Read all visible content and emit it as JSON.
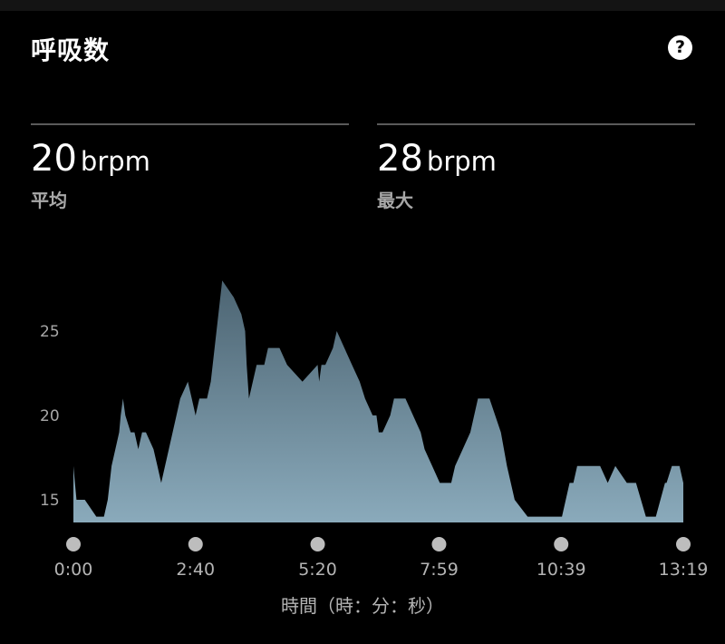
{
  "header": {
    "title": "呼吸数",
    "help_icon": "question-circle-icon"
  },
  "stats": [
    {
      "value": "20",
      "unit": "brpm",
      "label": "平均"
    },
    {
      "value": "28",
      "unit": "brpm",
      "label": "最大"
    }
  ],
  "chart_data": {
    "type": "area",
    "title": "",
    "xlabel": "時間（時：分：秒）",
    "ylabel": "",
    "y_ticks": [
      15,
      20,
      25
    ],
    "ylim": [
      13.7,
      29
    ],
    "x_ticks": [
      "0:00",
      "2:40",
      "5:20",
      "7:59",
      "10:39",
      "13:19"
    ],
    "x_tick_minutes": [
      0,
      160,
      320,
      479,
      639,
      799
    ],
    "xlim_minutes": [
      0,
      799
    ],
    "grid": false,
    "colors": {
      "fill_top": "#4c6472",
      "fill_bottom": "#8aaabb",
      "markers": "#bdbdbd"
    },
    "series": [
      {
        "x_minutes": [
          0,
          4,
          15,
          30,
          40,
          45,
          50,
          55,
          60,
          62,
          65,
          68,
          75,
          80,
          85,
          90,
          95,
          105,
          110,
          115,
          120,
          125,
          135,
          140,
          150,
          155,
          160,
          165,
          170,
          175,
          180,
          185,
          190,
          195,
          210,
          220,
          225,
          227,
          230,
          240,
          250,
          255,
          262,
          270,
          280,
          300,
          320,
          318,
          320,
          322,
          325,
          330,
          340,
          345,
          355,
          365,
          375,
          382,
          392,
          397,
          400,
          405,
          415,
          420,
          428,
          435,
          445,
          455,
          460,
          470,
          480,
          495,
          500,
          510,
          520,
          530,
          545,
          560,
          568,
          578,
          595,
          625,
          630,
          640,
          650,
          655,
          660,
          670,
          690,
          700,
          710,
          725,
          730,
          737,
          750,
          755,
          763,
          775,
          777,
          784,
          790,
          794,
          799
        ],
        "values": [
          17,
          15,
          15,
          14,
          14,
          15,
          17,
          18,
          19,
          20,
          21,
          20,
          19,
          19,
          18,
          19,
          19,
          18,
          17,
          16,
          17,
          18,
          20,
          21,
          22,
          21,
          20,
          21,
          21,
          21,
          22,
          24,
          26,
          28,
          27,
          26,
          25,
          23,
          21,
          23,
          23,
          24,
          24,
          24,
          23,
          22,
          23,
          22,
          23,
          22,
          23,
          23,
          24,
          25,
          24,
          23,
          22,
          21,
          20,
          20,
          19,
          19,
          20,
          21,
          21,
          21,
          20,
          19,
          18,
          17,
          16,
          16,
          17,
          18,
          19,
          21,
          21,
          19,
          17,
          15,
          14,
          14,
          14,
          14,
          16,
          16,
          17,
          17,
          17,
          16,
          17,
          16,
          16,
          16,
          14,
          14,
          14,
          16,
          16,
          17,
          17,
          17,
          16
        ]
      }
    ]
  }
}
